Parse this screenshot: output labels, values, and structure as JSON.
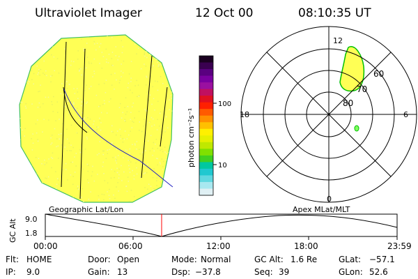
{
  "header": {
    "instrument": "Ultraviolet Imager",
    "date": "12 Oct 00",
    "time": "08:10:35 UT"
  },
  "colorbar": {
    "label": "photon cm⁻²s⁻¹",
    "ticks": [
      "100",
      "10"
    ],
    "colors": [
      "#1a0020",
      "#3a0050",
      "#5a0080",
      "#7a00a0",
      "#9a10a0",
      "#c01060",
      "#e01020",
      "#ff2000",
      "#ff5a00",
      "#ff9000",
      "#ffc000",
      "#fff000",
      "#e6f000",
      "#c0e800",
      "#80e000",
      "#40d020",
      "#00c8a0",
      "#20c8d0",
      "#60d8e0",
      "#a8e8f0",
      "#e0f0f4"
    ]
  },
  "geo_panel": {
    "caption": "Geographic Lat/Lon",
    "disk_color": "#ffff55"
  },
  "polar_panel": {
    "caption": "Apex MLat/MLT",
    "mlt_labels": {
      "top": "12",
      "left": "18",
      "right": "6",
      "bottom": "0"
    },
    "lat_labels": [
      "60",
      "70",
      "80"
    ],
    "aurora_color": "#ffff55",
    "aurora_edge": "#00c000"
  },
  "altitude_plot": {
    "ylabel": "GC Alt",
    "yticks": [
      "9.0",
      "1.8"
    ],
    "xticks": [
      "00:00",
      "06:00",
      "12:00",
      "18:00",
      "23:59"
    ],
    "current_marker": "#ff0000"
  },
  "status": {
    "row1": [
      {
        "key": "Flt:",
        "value": "HOME"
      },
      {
        "key": "Door:",
        "value": "Open"
      },
      {
        "key": "Mode:",
        "value": "Normal"
      },
      {
        "key": "GC Alt:",
        "value": "1.6 Re"
      },
      {
        "key": "GLat:",
        "value": "−57.1"
      }
    ],
    "row2": [
      {
        "key": "IP:",
        "value": "9.0"
      },
      {
        "key": "Gain:",
        "value": "13"
      },
      {
        "key": "Dsp:",
        "value": "−37.8"
      },
      {
        "key": "Seq:",
        "value": "39"
      },
      {
        "key": "GLon:",
        "value": "52.6"
      }
    ]
  }
}
